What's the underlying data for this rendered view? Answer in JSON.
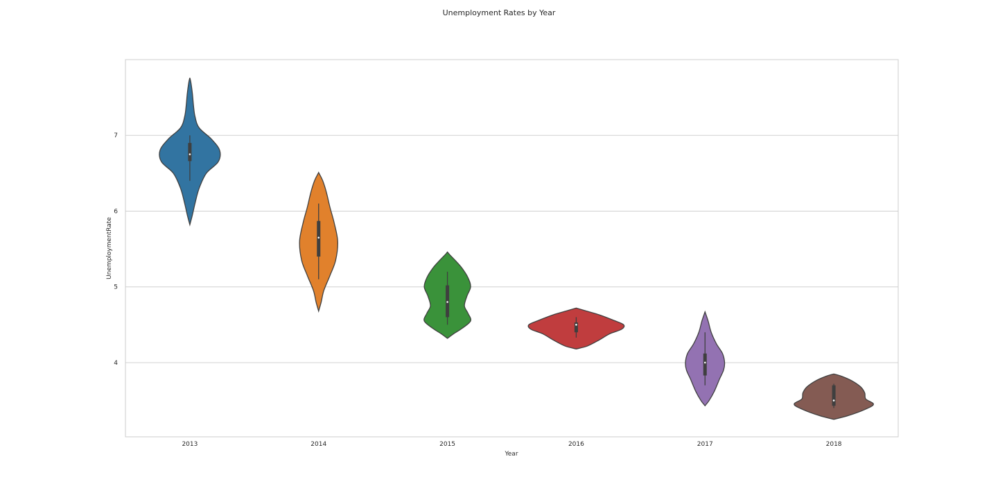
{
  "chart_data": {
    "type": "violin",
    "title": "Unemployment Rates by Year",
    "xlabel": "Year",
    "ylabel": "UnemploymentRate",
    "ylim": [
      3.02,
      8.0
    ],
    "yticks": [
      4,
      5,
      6,
      7
    ],
    "grid": "horizontal",
    "legend": "none",
    "categories": [
      "2013",
      "2014",
      "2015",
      "2016",
      "2017",
      "2018"
    ],
    "violins": [
      {
        "category": "2013",
        "color": "#3274a1",
        "min": 6.4,
        "q1": 6.66,
        "median": 6.75,
        "q3": 6.9,
        "max": 7.0,
        "density": [
          {
            "y": 5.82,
            "w": 0.0
          },
          {
            "y": 5.95,
            "w": 0.05
          },
          {
            "y": 6.1,
            "w": 0.1
          },
          {
            "y": 6.3,
            "w": 0.18
          },
          {
            "y": 6.5,
            "w": 0.32
          },
          {
            "y": 6.65,
            "w": 0.55
          },
          {
            "y": 6.8,
            "w": 0.58
          },
          {
            "y": 6.95,
            "w": 0.42
          },
          {
            "y": 7.1,
            "w": 0.18
          },
          {
            "y": 7.25,
            "w": 0.1
          },
          {
            "y": 7.4,
            "w": 0.07
          },
          {
            "y": 7.55,
            "w": 0.05
          },
          {
            "y": 7.7,
            "w": 0.02
          },
          {
            "y": 7.76,
            "w": 0.0
          }
        ]
      },
      {
        "category": "2014",
        "color": "#e1812c",
        "min": 5.1,
        "q1": 5.4,
        "median": 5.65,
        "q3": 5.87,
        "max": 6.1,
        "density": [
          {
            "y": 4.68,
            "w": 0.0
          },
          {
            "y": 4.8,
            "w": 0.05
          },
          {
            "y": 4.95,
            "w": 0.1
          },
          {
            "y": 5.15,
            "w": 0.22
          },
          {
            "y": 5.35,
            "w": 0.33
          },
          {
            "y": 5.6,
            "w": 0.37
          },
          {
            "y": 5.85,
            "w": 0.3
          },
          {
            "y": 6.05,
            "w": 0.22
          },
          {
            "y": 6.25,
            "w": 0.15
          },
          {
            "y": 6.4,
            "w": 0.08
          },
          {
            "y": 6.51,
            "w": 0.0
          }
        ]
      },
      {
        "category": "2015",
        "color": "#3a923a",
        "min": 4.5,
        "q1": 4.6,
        "median": 4.8,
        "q3": 5.02,
        "max": 5.2,
        "density": [
          {
            "y": 4.32,
            "w": 0.0
          },
          {
            "y": 4.38,
            "w": 0.12
          },
          {
            "y": 4.45,
            "w": 0.28
          },
          {
            "y": 4.55,
            "w": 0.45
          },
          {
            "y": 4.65,
            "w": 0.4
          },
          {
            "y": 4.75,
            "w": 0.33
          },
          {
            "y": 4.88,
            "w": 0.38
          },
          {
            "y": 5.0,
            "w": 0.45
          },
          {
            "y": 5.12,
            "w": 0.4
          },
          {
            "y": 5.25,
            "w": 0.28
          },
          {
            "y": 5.35,
            "w": 0.15
          },
          {
            "y": 5.42,
            "w": 0.05
          },
          {
            "y": 5.46,
            "w": 0.0
          }
        ]
      },
      {
        "category": "2016",
        "color": "#c03d3e",
        "min": 4.33,
        "q1": 4.4,
        "median": 4.5,
        "q3": 4.53,
        "max": 4.6,
        "density": [
          {
            "y": 4.18,
            "w": 0.0
          },
          {
            "y": 4.22,
            "w": 0.22
          },
          {
            "y": 4.3,
            "w": 0.45
          },
          {
            "y": 4.38,
            "w": 0.65
          },
          {
            "y": 4.44,
            "w": 0.88
          },
          {
            "y": 4.5,
            "w": 0.92
          },
          {
            "y": 4.56,
            "w": 0.72
          },
          {
            "y": 4.63,
            "w": 0.45
          },
          {
            "y": 4.68,
            "w": 0.2
          },
          {
            "y": 4.72,
            "w": 0.0
          }
        ]
      },
      {
        "category": "2017",
        "color": "#9372b2",
        "min": 3.7,
        "q1": 3.83,
        "median": 4.0,
        "q3": 4.12,
        "max": 4.4,
        "density": [
          {
            "y": 3.43,
            "w": 0.0
          },
          {
            "y": 3.5,
            "w": 0.08
          },
          {
            "y": 3.62,
            "w": 0.18
          },
          {
            "y": 3.78,
            "w": 0.28
          },
          {
            "y": 3.9,
            "w": 0.36
          },
          {
            "y": 4.0,
            "w": 0.38
          },
          {
            "y": 4.12,
            "w": 0.34
          },
          {
            "y": 4.25,
            "w": 0.22
          },
          {
            "y": 4.4,
            "w": 0.12
          },
          {
            "y": 4.55,
            "w": 0.06
          },
          {
            "y": 4.67,
            "w": 0.0
          }
        ]
      },
      {
        "category": "2018",
        "color": "#845b53",
        "min": 3.4,
        "q1": 3.43,
        "median": 3.5,
        "q3": 3.7,
        "max": 3.72,
        "density": [
          {
            "y": 3.25,
            "w": 0.0
          },
          {
            "y": 3.3,
            "w": 0.28
          },
          {
            "y": 3.38,
            "w": 0.6
          },
          {
            "y": 3.45,
            "w": 0.77
          },
          {
            "y": 3.52,
            "w": 0.62
          },
          {
            "y": 3.6,
            "w": 0.6
          },
          {
            "y": 3.68,
            "w": 0.52
          },
          {
            "y": 3.76,
            "w": 0.35
          },
          {
            "y": 3.82,
            "w": 0.15
          },
          {
            "y": 3.85,
            "w": 0.0
          }
        ]
      }
    ]
  }
}
